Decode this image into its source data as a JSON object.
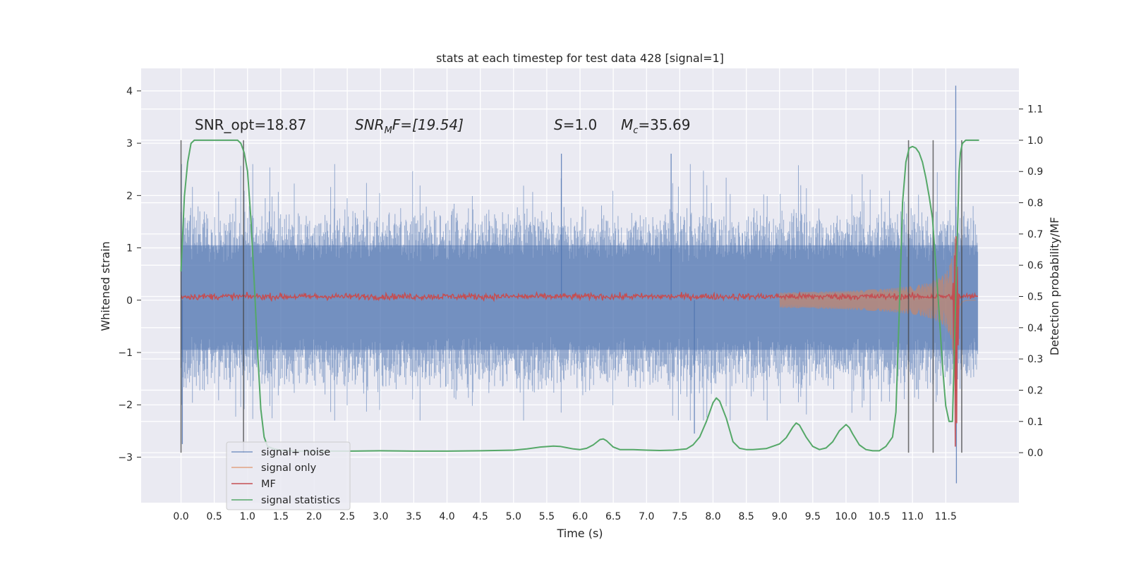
{
  "chart_data": {
    "type": "line",
    "title": "stats at each timestep for test data 428 [signal=1]",
    "xlabel": "Time (s)",
    "ylabel": "Whitened strain",
    "y2label": "Detection probability/MF",
    "xlim": [
      -0.6,
      12.6
    ],
    "ylim": [
      -3.87,
      4.43
    ],
    "y2lim": [
      -0.16,
      1.23
    ],
    "grid": true,
    "legend_position": "lower-left",
    "x_ticks": [
      "0.0",
      "0.5",
      "1.0",
      "1.5",
      "2.0",
      "2.5",
      "3.0",
      "3.5",
      "4.0",
      "4.5",
      "5.0",
      "5.5",
      "6.0",
      "6.5",
      "7.0",
      "7.5",
      "8.0",
      "8.5",
      "9.0",
      "9.5",
      "10.0",
      "10.5",
      "11.0",
      "11.5"
    ],
    "y_ticks": [
      "−3",
      "−2",
      "−1",
      "0",
      "1",
      "2",
      "3",
      "4"
    ],
    "y2_ticks": [
      "0.0",
      "0.1",
      "0.2",
      "0.3",
      "0.4",
      "0.5",
      "0.6",
      "0.7",
      "0.8",
      "0.9",
      "1.0",
      "1.1"
    ],
    "annotations": {
      "snr_opt": "SNR_opt=18.87",
      "snr_mf_italic": "SNR",
      "snr_mf_sub": "M",
      "snr_mf_rest": "F=[19.54]",
      "s_label": "S",
      "s_value": "=1.0",
      "mc_label": "M",
      "mc_sub": "c",
      "mc_value": "=35.69"
    },
    "segment_markers_x": [
      0.0,
      0.94,
      10.94,
      11.31,
      11.74
    ],
    "series": [
      {
        "name": "signal+ noise",
        "color": "#4c72b0",
        "alpha": 0.5,
        "axis": "left",
        "noise_amplitude": 1.45,
        "spikes": [
          [
            11.65,
            4.1
          ],
          [
            11.66,
            -3.5
          ],
          [
            0.02,
            -2.75
          ],
          [
            5.72,
            2.8
          ],
          [
            7.37,
            2.8
          ],
          [
            7.72,
            -2.55
          ]
        ]
      },
      {
        "name": "signal only",
        "color": "#dd8452",
        "alpha": 0.55,
        "axis": "left",
        "chirp_peak_x": 11.65,
        "chirp_peak_amplitude": 3.1
      },
      {
        "name": "MF",
        "color": "#c44e52",
        "alpha": 1.0,
        "axis": "left",
        "baseline": 0.07,
        "peak_x": 11.65,
        "peak_value": -3.35
      },
      {
        "name": "signal statistics",
        "color": "#55a868",
        "alpha": 1.0,
        "axis": "right",
        "x": [
          0.0,
          0.05,
          0.1,
          0.15,
          0.2,
          0.3,
          0.4,
          0.5,
          0.6,
          0.7,
          0.8,
          0.85,
          0.9,
          0.95,
          1.0,
          1.05,
          1.1,
          1.15,
          1.2,
          1.25,
          1.3,
          1.4,
          1.5,
          1.6,
          1.8,
          2.0,
          2.5,
          3.0,
          3.5,
          4.0,
          4.5,
          5.0,
          5.2,
          5.4,
          5.6,
          5.7,
          5.8,
          5.9,
          6.0,
          6.1,
          6.2,
          6.3,
          6.35,
          6.4,
          6.5,
          6.6,
          6.8,
          7.0,
          7.2,
          7.4,
          7.6,
          7.7,
          7.8,
          7.9,
          8.0,
          8.05,
          8.1,
          8.2,
          8.3,
          8.4,
          8.5,
          8.6,
          8.8,
          9.0,
          9.1,
          9.2,
          9.25,
          9.3,
          9.4,
          9.5,
          9.6,
          9.7,
          9.8,
          9.9,
          10.0,
          10.05,
          10.1,
          10.2,
          10.3,
          10.4,
          10.5,
          10.6,
          10.7,
          10.75,
          10.8,
          10.85,
          10.9,
          10.95,
          11.0,
          11.05,
          11.1,
          11.15,
          11.2,
          11.25,
          11.3,
          11.35,
          11.4,
          11.45,
          11.5,
          11.55,
          11.6,
          11.65,
          11.7,
          11.72,
          11.75,
          11.8,
          11.85,
          11.9,
          11.95,
          12.0
        ],
        "y": [
          0.58,
          0.82,
          0.93,
          0.99,
          1.0,
          1.0,
          1.0,
          1.0,
          1.0,
          1.0,
          1.0,
          1.0,
          0.99,
          0.96,
          0.9,
          0.75,
          0.55,
          0.33,
          0.14,
          0.05,
          0.02,
          0.012,
          0.008,
          0.006,
          0.005,
          0.005,
          0.005,
          0.006,
          0.005,
          0.005,
          0.006,
          0.008,
          0.012,
          0.018,
          0.021,
          0.02,
          0.016,
          0.012,
          0.01,
          0.014,
          0.025,
          0.042,
          0.044,
          0.038,
          0.018,
          0.01,
          0.01,
          0.008,
          0.007,
          0.008,
          0.012,
          0.025,
          0.05,
          0.1,
          0.16,
          0.175,
          0.165,
          0.11,
          0.035,
          0.014,
          0.01,
          0.01,
          0.013,
          0.028,
          0.048,
          0.082,
          0.095,
          0.088,
          0.05,
          0.02,
          0.01,
          0.015,
          0.035,
          0.07,
          0.09,
          0.08,
          0.06,
          0.025,
          0.01,
          0.006,
          0.006,
          0.02,
          0.05,
          0.13,
          0.45,
          0.8,
          0.93,
          0.975,
          0.98,
          0.975,
          0.96,
          0.93,
          0.88,
          0.82,
          0.75,
          0.6,
          0.45,
          0.28,
          0.15,
          0.1,
          0.1,
          0.5,
          0.9,
          0.96,
          0.99,
          1.0,
          1.0,
          1.0,
          1.0,
          1.0
        ]
      }
    ]
  }
}
